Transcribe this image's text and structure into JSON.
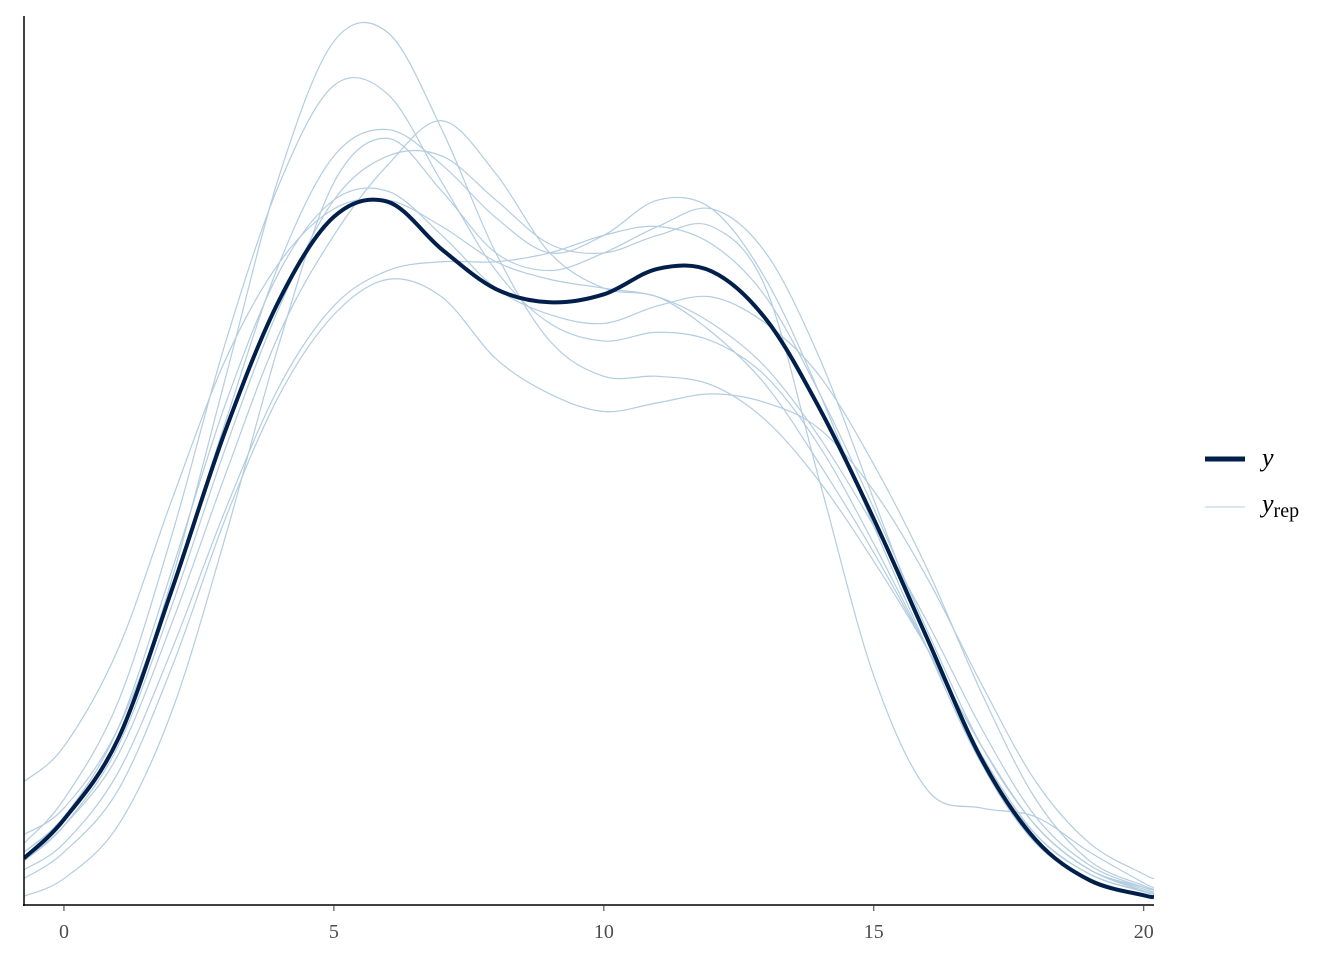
{
  "chart_data": {
    "type": "density_overlay",
    "x": [
      -0.74,
      0,
      1,
      2,
      3,
      4,
      5,
      6,
      7,
      8,
      9,
      10,
      11,
      12,
      13,
      14,
      15,
      16,
      17,
      18,
      19,
      20,
      20.19
    ],
    "xlim": [
      -0.74,
      20.19
    ],
    "xticks": [
      0,
      5,
      10,
      15,
      20
    ],
    "ylim": [
      0,
      0.101
    ],
    "series": [
      {
        "name": "y",
        "color": "#011f4b",
        "values": [
          0.0053,
          0.0097,
          0.0188,
          0.0358,
          0.054,
          0.0688,
          0.0781,
          0.0798,
          0.0744,
          0.0699,
          0.0684,
          0.0693,
          0.0722,
          0.0719,
          0.0665,
          0.0563,
          0.0438,
          0.0301,
          0.0165,
          0.0074,
          0.0028,
          0.0011,
          0.0009
        ]
      }
    ],
    "replicates": {
      "name": "y",
      "name_subscript": "rep",
      "color": "#b3cde0",
      "values": [
        [
          0.007,
          0.012,
          0.023,
          0.042,
          0.064,
          0.082,
          0.093,
          0.092,
          0.082,
          0.072,
          0.066,
          0.064,
          0.065,
          0.064,
          0.06,
          0.052,
          0.041,
          0.029,
          0.017,
          0.008,
          0.0035,
          0.0015,
          0.0012
        ],
        [
          0.004,
          0.007,
          0.015,
          0.029,
          0.045,
          0.059,
          0.068,
          0.072,
          0.073,
          0.073,
          0.074,
          0.076,
          0.077,
          0.075,
          0.069,
          0.058,
          0.045,
          0.031,
          0.018,
          0.009,
          0.004,
          0.002,
          0.0018
        ],
        [
          0.006,
          0.01,
          0.019,
          0.037,
          0.06,
          0.083,
          0.098,
          0.099,
          0.088,
          0.074,
          0.064,
          0.06,
          0.06,
          0.059,
          0.055,
          0.048,
          0.039,
          0.029,
          0.018,
          0.009,
          0.004,
          0.0016,
          0.0013
        ],
        [
          0.003,
          0.006,
          0.013,
          0.027,
          0.044,
          0.058,
          0.067,
          0.071,
          0.069,
          0.062,
          0.058,
          0.056,
          0.057,
          0.058,
          0.057,
          0.054,
          0.047,
          0.037,
          0.025,
          0.014,
          0.007,
          0.0035,
          0.003
        ],
        [
          0.005,
          0.009,
          0.018,
          0.034,
          0.052,
          0.068,
          0.08,
          0.085,
          0.085,
          0.08,
          0.075,
          0.074,
          0.076,
          0.077,
          0.07,
          0.048,
          0.026,
          0.013,
          0.011,
          0.01,
          0.006,
          0.0025,
          0.002
        ],
        [
          0.014,
          0.018,
          0.029,
          0.046,
          0.062,
          0.073,
          0.079,
          0.08,
          0.077,
          0.073,
          0.071,
          0.07,
          0.069,
          0.066,
          0.061,
          0.053,
          0.043,
          0.032,
          0.02,
          0.01,
          0.0045,
          0.002,
          0.0017
        ],
        [
          0.001,
          0.003,
          0.009,
          0.022,
          0.042,
          0.064,
          0.082,
          0.087,
          0.081,
          0.074,
          0.072,
          0.074,
          0.077,
          0.079,
          0.074,
          0.062,
          0.046,
          0.03,
          0.016,
          0.007,
          0.003,
          0.0012,
          0.001
        ],
        [
          0.005,
          0.009,
          0.017,
          0.032,
          0.049,
          0.065,
          0.076,
          0.084,
          0.089,
          0.083,
          0.074,
          0.07,
          0.069,
          0.065,
          0.059,
          0.05,
          0.04,
          0.029,
          0.018,
          0.009,
          0.004,
          0.0018,
          0.0015
        ],
        [
          0.008,
          0.011,
          0.02,
          0.036,
          0.055,
          0.073,
          0.085,
          0.088,
          0.084,
          0.078,
          0.074,
          0.076,
          0.08,
          0.079,
          0.071,
          0.058,
          0.043,
          0.029,
          0.016,
          0.008,
          0.0035,
          0.0016,
          0.0014
        ],
        [
          0.006,
          0.01,
          0.02,
          0.038,
          0.057,
          0.072,
          0.08,
          0.081,
          0.076,
          0.07,
          0.067,
          0.066,
          0.068,
          0.069,
          0.066,
          0.06,
          0.05,
          0.038,
          0.024,
          0.012,
          0.005,
          0.0022,
          0.0018
        ]
      ]
    }
  }
}
